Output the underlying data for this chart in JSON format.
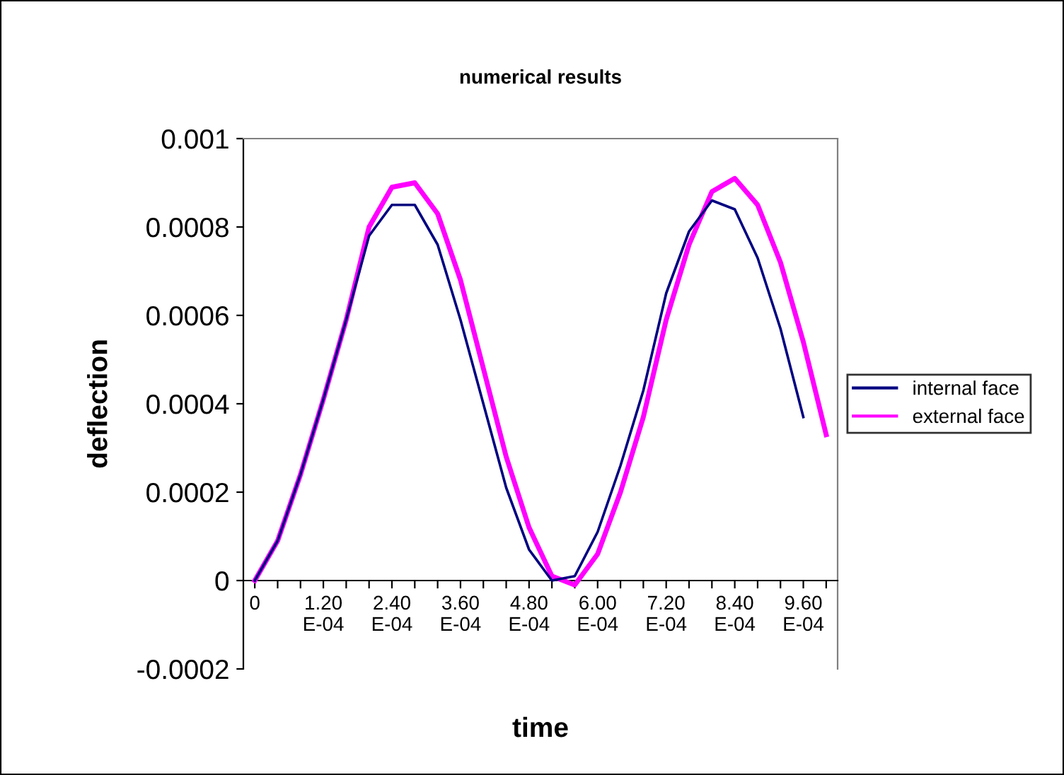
{
  "chart_data": {
    "type": "line",
    "title": "numerical results",
    "xlabel": "time",
    "ylabel": "deflection",
    "categories": [
      "0",
      null,
      null,
      "1.20\nE-04",
      null,
      null,
      "2.40\nE-04",
      null,
      null,
      "3.60\nE-04",
      null,
      null,
      "4.80\nE-04",
      null,
      null,
      "6.00\nE-04",
      null,
      null,
      "7.20\nE-04",
      null,
      null,
      "8.40\nE-04",
      null,
      null,
      "9.60\nE-04",
      null
    ],
    "series": [
      {
        "name": "internal face",
        "color": "#000080",
        "values": [
          0,
          9e-05,
          0.00024,
          0.00041,
          0.00059,
          0.00078,
          0.00085,
          0.00085,
          0.00076,
          0.00059,
          0.0004,
          0.00021,
          7e-05,
          0,
          1e-05,
          0.00011,
          0.00026,
          0.00043,
          0.00065,
          0.00079,
          0.00086,
          0.00084,
          0.00073,
          0.00057,
          0.00037,
          null
        ]
      },
      {
        "name": "external face",
        "color": "#ff00ff",
        "values": [
          0,
          9e-05,
          0.00024,
          0.00041,
          0.00059,
          0.0008,
          0.00089,
          0.0009,
          0.00083,
          0.00068,
          0.00048,
          0.00028,
          0.00012,
          1e-05,
          -1e-05,
          6e-05,
          0.0002,
          0.00037,
          0.00059,
          0.00076,
          0.00088,
          0.00091,
          0.00085,
          0.00072,
          0.00054,
          0.00033
        ]
      }
    ],
    "ylim": [
      -0.0002,
      0.001
    ],
    "yticks": [
      -0.0002,
      0,
      0.0002,
      0.0004,
      0.0006,
      0.0008,
      0.001
    ],
    "grid": false,
    "legend": "right",
    "marker": "none",
    "line_style": "solid"
  }
}
